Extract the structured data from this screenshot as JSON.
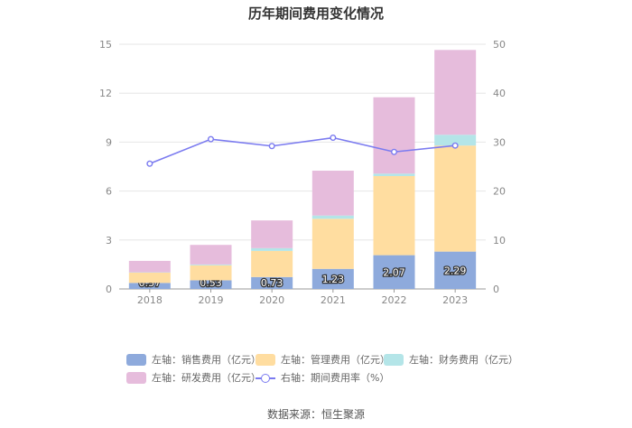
{
  "chart_data": {
    "type": "bar",
    "title": "历年期间费用变化情况",
    "categories": [
      "2018",
      "2019",
      "2020",
      "2021",
      "2022",
      "2023"
    ],
    "y_left": {
      "min": 0,
      "max": 15,
      "ticks": [
        0,
        3,
        6,
        9,
        12,
        15
      ]
    },
    "y_right": {
      "min": 0,
      "max": 50,
      "ticks": [
        0,
        10,
        20,
        30,
        40,
        50
      ]
    },
    "stacked_series": [
      {
        "name": "左轴：销售费用（亿元）",
        "color": "#8EAADC",
        "values": [
          0.37,
          0.53,
          0.73,
          1.23,
          2.07,
          2.29
        ],
        "labels": [
          "0.37",
          "0.53",
          "0.73",
          "1.23",
          "2.07",
          "2.29"
        ]
      },
      {
        "name": "左轴：管理费用（亿元）",
        "color": "#FFDDA0",
        "values": [
          0.63,
          0.92,
          1.6,
          3.07,
          4.85,
          6.5
        ]
      },
      {
        "name": "左轴：财务费用（亿元）",
        "color": "#B4E5E8",
        "values": [
          0.02,
          0.05,
          0.17,
          0.2,
          0.15,
          0.66
        ]
      },
      {
        "name": "左轴：研发费用（亿元）",
        "color": "#E6BCDC",
        "values": [
          0.7,
          1.2,
          1.7,
          2.75,
          4.68,
          5.2
        ]
      }
    ],
    "line_series": {
      "name": "右轴：期间费用率（%）",
      "color": "#7B7BF0",
      "values": [
        25.6,
        30.6,
        29.2,
        30.9,
        28.0,
        29.3
      ]
    }
  },
  "source": "数据来源：恒生聚源"
}
